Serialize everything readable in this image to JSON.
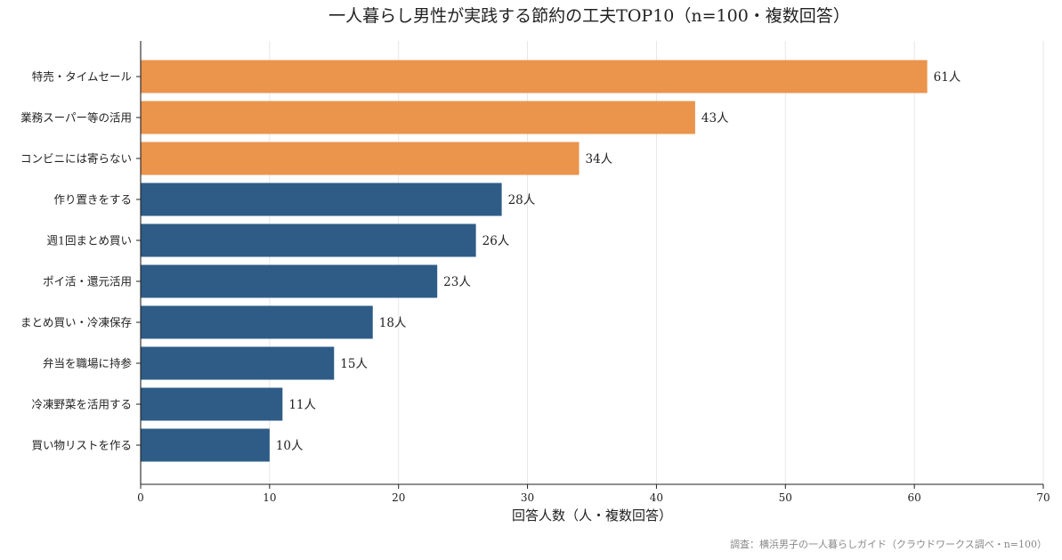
{
  "chart_data": {
    "type": "bar",
    "orientation": "horizontal",
    "title": "一人暮らし男性が実践する節約の工夫TOP10（n=100・複数回答）",
    "xlabel": "回答人数（人・複数回答）",
    "ylabel": "",
    "xlim": [
      0,
      70
    ],
    "xticks": [
      0,
      10,
      20,
      30,
      40,
      50,
      60,
      70
    ],
    "grid": "x",
    "value_suffix": "人",
    "categories": [
      "特売・タイムセール",
      "業務スーパー等の活用",
      "コンビニには寄らない",
      "作り置きをする",
      "週1回まとめ買い",
      "ポイ活・還元活用",
      "まとめ買い・冷凍保存",
      "弁当を職場に持参",
      "冷凍野菜を活用する",
      "買い物リストを作る"
    ],
    "values": [
      61,
      43,
      34,
      28,
      26,
      23,
      18,
      15,
      11,
      10
    ],
    "data_labels": [
      "61人",
      "43人",
      "34人",
      "28人",
      "26人",
      "23人",
      "18人",
      "15人",
      "11人",
      "10人"
    ],
    "colors": {
      "highlight": "#EA944C",
      "default": "#2E5C87",
      "highlight_count": 3
    },
    "source_note": "調査：横浜男子の一人暮らしガイド（クラウドワークス調べ・n=100）"
  }
}
